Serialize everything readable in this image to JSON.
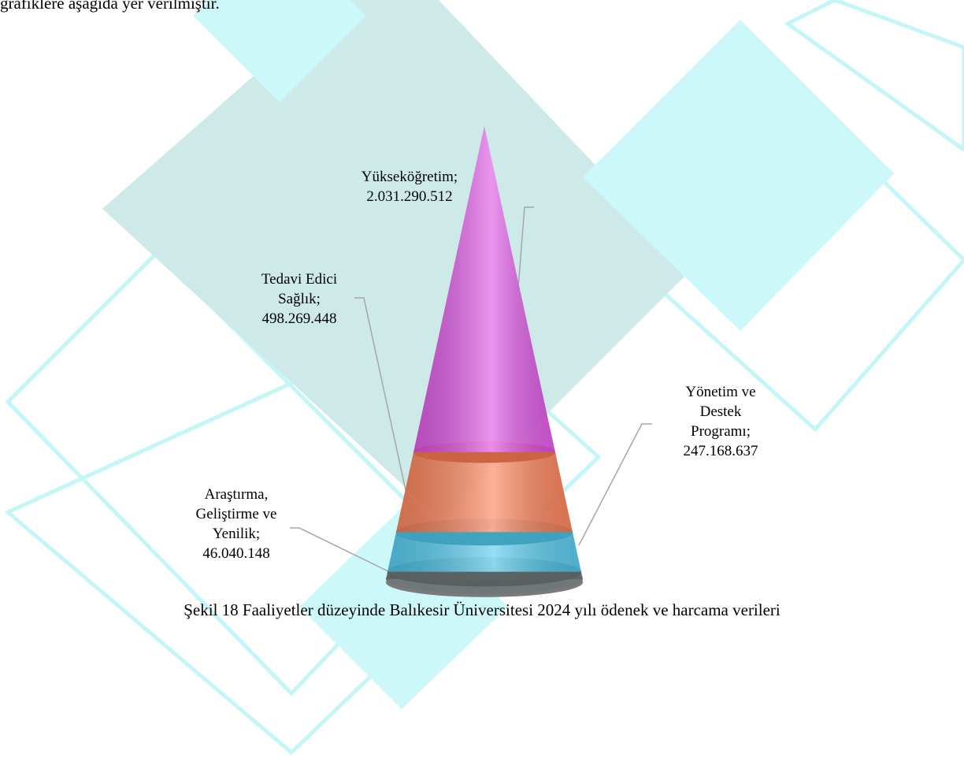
{
  "intro_text": "grafiklere aşağıda yer verilmiştir.",
  "chart_data": {
    "type": "cone",
    "categories": [
      "Araştırma, Geliştirme ve Yenilik;",
      "Yönetim ve Destek Programı;",
      "Tedavi Edici Sağlık;",
      "Yükseköğretim;"
    ],
    "values": [
      46040148,
      247168637,
      498269448,
      2031290512
    ],
    "value_labels": [
      "46.040.148",
      "247.168.637",
      "498.269.448",
      "2.031.290.512"
    ],
    "colors": [
      "#6f7778",
      "#4cc9ee",
      "#ff7a4e",
      "#e14ee6"
    ]
  },
  "caption": "Şekil 18 Faaliyetler düzeyinde Balıkesir Üniversitesi 2024 yılı ödenek ve harcama verileri"
}
